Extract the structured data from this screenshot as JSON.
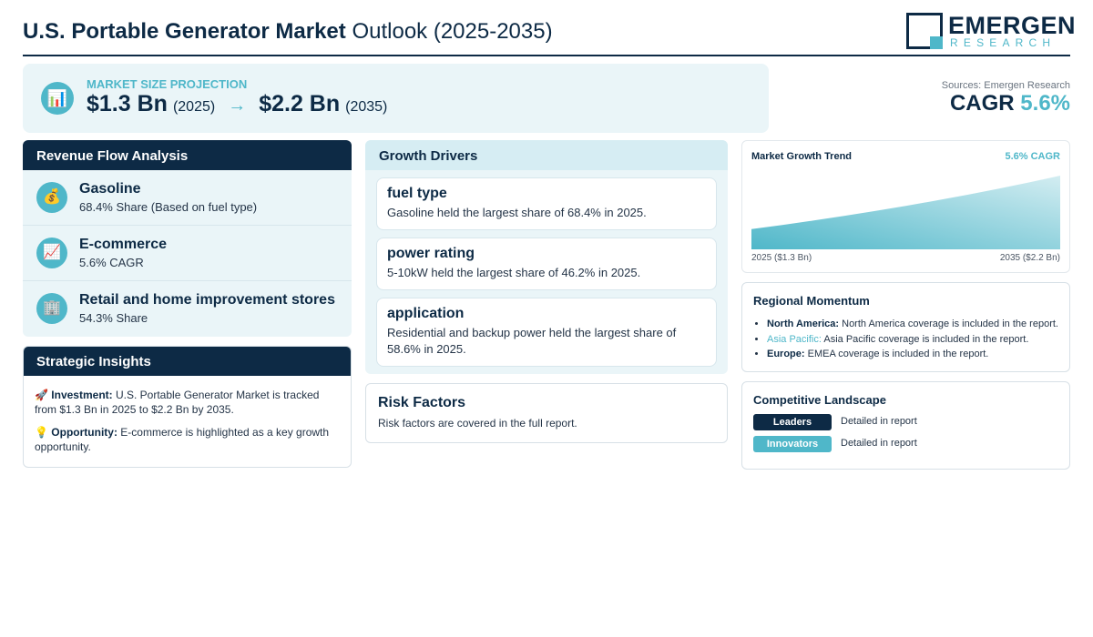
{
  "header": {
    "title_bold": "U.S. Portable Generator Market",
    "title_rest": "Outlook (2025-2035)",
    "logo_name": "EMERGEN",
    "logo_sub": "RESEARCH"
  },
  "projection": {
    "icon": "bar-chart-icon",
    "label": "MARKET SIZE PROJECTION",
    "start_value": "$1.3 Bn",
    "start_year": "(2025)",
    "arrow": "→",
    "end_value": "$2.2 Bn",
    "end_year": "(2035)"
  },
  "sources": "Sources: Emergen Research",
  "cagr": {
    "label": "CAGR",
    "value": "5.6%"
  },
  "revenue_flow": {
    "title": "Revenue Flow Analysis",
    "items": [
      {
        "icon": "money-bag-icon",
        "glyph": "💰",
        "name": "Gasoline",
        "desc": "68.4% Share (Based on fuel type)"
      },
      {
        "icon": "trend-up-icon",
        "glyph": "📈",
        "name": "E-commerce",
        "desc": "5.6% CAGR"
      },
      {
        "icon": "building-icon",
        "glyph": "🏢",
        "name": "Retail and home improvement stores",
        "desc": "54.3% Share"
      }
    ]
  },
  "strategic": {
    "title": "Strategic Insights",
    "investment_glyph": "🚀",
    "investment_label": "Investment:",
    "investment_text": "U.S. Portable Generator Market is tracked from $1.3 Bn in 2025 to $2.2 Bn by 2035.",
    "opportunity_glyph": "💡",
    "opportunity_label": "Opportunity:",
    "opportunity_text": "E-commerce is highlighted as a key growth opportunity."
  },
  "growth_drivers": {
    "title": "Growth Drivers",
    "items": [
      {
        "heading": "fuel type",
        "text": "Gasoline held the largest share of 68.4% in 2025."
      },
      {
        "heading": "power rating",
        "text": "5-10kW held the largest share of 46.2% in 2025."
      },
      {
        "heading": "application",
        "text": "Residential and backup power held the largest share of 58.6% in 2025."
      }
    ]
  },
  "risk": {
    "title": "Risk Factors",
    "text": "Risk factors are covered in the full report."
  },
  "trend": {
    "title": "Market Growth Trend",
    "cagr": "5.6% CAGR",
    "x_start": "2025 ($1.3 Bn)",
    "x_end": "2035 ($2.2 Bn)",
    "fill_color": "#4fb7c9"
  },
  "chart_data": {
    "type": "area",
    "title": "Market Growth Trend",
    "x": [
      2025,
      2035
    ],
    "x_labels": [
      "2025 ($1.3 Bn)",
      "2035 ($2.2 Bn)"
    ],
    "values": [
      1.3,
      2.2
    ]
  },
  "regional": {
    "title": "Regional Momentum",
    "items": [
      {
        "region": "North America:",
        "text": "North America coverage is included in the report."
      },
      {
        "region": "Asia Pacific:",
        "text": "Asia Pacific coverage is included in the report."
      },
      {
        "region": "Europe:",
        "text": "EMEA coverage is included in the report."
      }
    ]
  },
  "competitive": {
    "title": "Competitive Landscape",
    "rows": [
      {
        "label": "Leaders",
        "desc": "Detailed in report"
      },
      {
        "label": "Innovators",
        "desc": "Detailed in report"
      }
    ]
  }
}
